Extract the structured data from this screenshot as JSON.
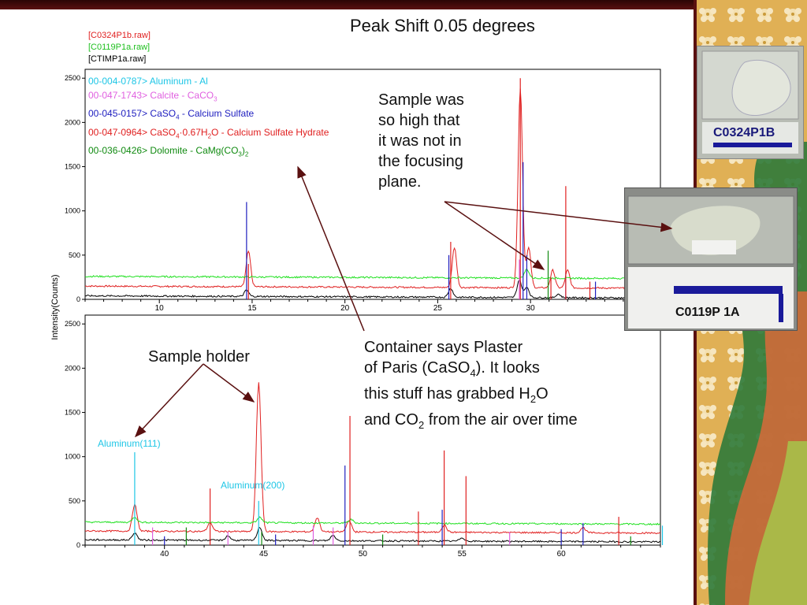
{
  "slide": {
    "title": "Peak Shift 0.05 degrees",
    "note_sample": [
      "Sample was",
      "so high that",
      "it was not in",
      "the focusing",
      "plane."
    ],
    "note_holder": "Sample holder",
    "note_container": {
      "line1": "Container says Plaster",
      "line2_pre": "of Paris (CaSO",
      "line2_sub": "4",
      "line2_post": ").  It looks",
      "line3_pre": "this stuff has grabbed H",
      "line3_sub": "2",
      "line3_post": "O",
      "line4_pre": "and CO",
      "line4_sub": "2",
      "line4_post": " from the air over time"
    },
    "photo1_label": "C0324P1B",
    "photo2_label": "C0119P 1A"
  },
  "colors": {
    "red": "#e02020",
    "green": "#20e020",
    "black": "#000000",
    "cyan": "#1ec6e6",
    "magenta": "#e060e0",
    "blue": "#2020c0",
    "darkgreen": "#108a10",
    "arrow": "#5a1010"
  },
  "chart_data": [
    {
      "type": "line",
      "panel": "top",
      "ylabel": "Intensity(Counts)",
      "xlim": [
        6,
        37
      ],
      "ylim": [
        0,
        2600
      ],
      "x_ticks": [
        10,
        15,
        20,
        25,
        30
      ],
      "y_ticks": [
        0,
        500,
        1000,
        1500,
        2000,
        2500
      ],
      "scan_files": [
        {
          "name": "[C0324P1b.raw]",
          "color": "red",
          "baseline": 150,
          "peaks": [
            [
              14.8,
              400
            ],
            [
              25.9,
              450
            ],
            [
              29.45,
              2250
            ],
            [
              29.9,
              450
            ],
            [
              31.2,
              200
            ],
            [
              32.0,
              200
            ]
          ]
        },
        {
          "name": "[C0119P1a.raw]",
          "color": "green",
          "baseline": 260,
          "peaks": [
            [
              29.8,
              100
            ]
          ]
        },
        {
          "name": "[CTIMP1a.raw]",
          "color": "black",
          "baseline": 40,
          "peaks": [
            [
              14.7,
              70
            ],
            [
              25.7,
              100
            ],
            [
              29.4,
              200
            ],
            [
              29.8,
              120
            ],
            [
              31.5,
              40
            ]
          ]
        }
      ],
      "reference_phases": [
        {
          "label": "00-004-0787> Aluminum - Al",
          "color": "cyan",
          "sticks": []
        },
        {
          "label": "00-047-1743> Calcite - CaCO3",
          "color": "magenta",
          "sticks": [
            [
              29.4,
              450
            ]
          ]
        },
        {
          "label": "00-045-0157> CaSO4 - Calcium Sulfate",
          "color": "blue",
          "sticks": [
            [
              14.7,
              1100
            ],
            [
              25.6,
              500
            ],
            [
              29.6,
              1550
            ],
            [
              29.8,
              500
            ],
            [
              31.9,
              300
            ],
            [
              33.5,
              200
            ]
          ]
        },
        {
          "label": "00-047-0964> CaSO4·0.67H2O - Calcium Sulfate Hydrate",
          "color": "red",
          "sticks": [
            [
              14.8,
              400
            ],
            [
              25.7,
              650
            ],
            [
              29.45,
              2500
            ],
            [
              31.1,
              250
            ],
            [
              31.9,
              1280
            ],
            [
              33.2,
              200
            ]
          ]
        },
        {
          "label": "00-036-0426> Dolomite - CaMg(CO3)2",
          "color": "darkgreen",
          "sticks": [
            [
              30.95,
              550
            ]
          ]
        }
      ]
    },
    {
      "type": "line",
      "panel": "bottom",
      "xlim": [
        36,
        65
      ],
      "ylim": [
        0,
        2600
      ],
      "x_ticks": [
        40,
        45,
        50,
        55,
        60
      ],
      "y_ticks": [
        0,
        500,
        1000,
        1500,
        2000,
        2500
      ],
      "annotations": [
        "Aluminum(111)",
        "Aluminum(200)"
      ],
      "scan_files": [
        {
          "name": "[C0324P1b.raw]",
          "color": "red",
          "baseline": 160,
          "peaks": [
            [
              38.5,
              300
            ],
            [
              42.3,
              100
            ],
            [
              44.75,
              1680
            ],
            [
              47.7,
              160
            ],
            [
              49.3,
              130
            ],
            [
              54.1,
              80
            ],
            [
              61.1,
              60
            ]
          ]
        },
        {
          "name": "[C0119P1a.raw]",
          "color": "green",
          "baseline": 260,
          "peaks": [
            [
              38.5,
              60
            ],
            [
              44.8,
              60
            ],
            [
              49.4,
              40
            ]
          ]
        },
        {
          "name": "[CTIMP1a.raw]",
          "color": "black",
          "baseline": 60,
          "peaks": [
            [
              38.5,
              80
            ],
            [
              43.2,
              50
            ],
            [
              44.8,
              150
            ],
            [
              48.5,
              60
            ],
            [
              55.0,
              40
            ]
          ]
        }
      ],
      "reference_phases": [
        {
          "color": "cyan",
          "sticks": [
            [
              38.5,
              1050
            ],
            [
              44.75,
              500
            ],
            [
              65.1,
              220
            ]
          ]
        },
        {
          "color": "red",
          "sticks": [
            [
              42.3,
              640
            ],
            [
              49.35,
              1460
            ],
            [
              52.8,
              380
            ],
            [
              54.1,
              1070
            ],
            [
              55.2,
              780
            ],
            [
              62.9,
              320
            ]
          ]
        },
        {
          "color": "blue",
          "sticks": [
            [
              40.0,
              100
            ],
            [
              45.6,
              120
            ],
            [
              49.1,
              900
            ],
            [
              54.0,
              400
            ],
            [
              60.0,
              180
            ],
            [
              61.1,
              250
            ]
          ]
        },
        {
          "color": "magenta",
          "sticks": [
            [
              39.4,
              200
            ],
            [
              43.2,
              150
            ],
            [
              47.5,
              220
            ],
            [
              48.5,
              200
            ],
            [
              57.4,
              150
            ]
          ]
        },
        {
          "color": "darkgreen",
          "sticks": [
            [
              41.1,
              200
            ],
            [
              44.9,
              150
            ],
            [
              51.0,
              120
            ],
            [
              63.5,
              100
            ]
          ]
        }
      ]
    }
  ]
}
